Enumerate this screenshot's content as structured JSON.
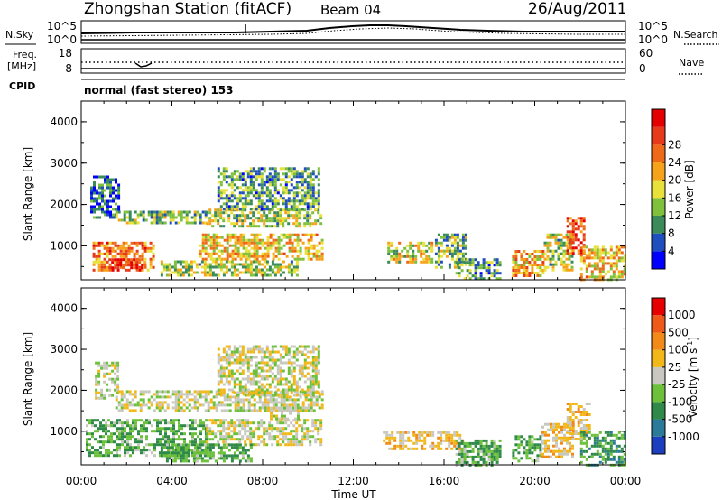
{
  "header": {
    "title": "Zhongshan Station (fitACF)",
    "beam": "Beam 04",
    "date": "26/Aug/2011"
  },
  "noise_panel": {
    "left_label": "N.Sky",
    "right_label": "N.Search",
    "ytick_top": "10^5",
    "ytick_bottom": "10^0"
  },
  "freq_panel": {
    "left_label_line1": "Freq.",
    "left_label_line2": "[MHz]",
    "right_label": "Nave",
    "left_tick_top": "18",
    "left_tick_bottom": "8",
    "right_tick_top": "60",
    "right_tick_bottom": "0"
  },
  "cpid": {
    "label": "CPID",
    "text": "normal (fast stereo) 153"
  },
  "axes": {
    "xlabel": "Time UT",
    "xticks": [
      "00:00",
      "04:00",
      "08:00",
      "12:00",
      "16:00",
      "20:00",
      "00:00"
    ],
    "ylabel": "Slant Range [km]",
    "yticks": [
      "1000",
      "2000",
      "3000",
      "4000"
    ]
  },
  "colorbars": {
    "power": {
      "label": "Power [dB]",
      "ticks": [
        "4",
        "8",
        "12",
        "16",
        "20",
        "24",
        "28"
      ],
      "colors": [
        "#0000ff",
        "#1f4fbf",
        "#3a8a5a",
        "#7fc03c",
        "#e8e13a",
        "#f7a21b",
        "#ef6a18",
        "#e63a1a",
        "#e50000"
      ]
    },
    "velocity": {
      "label": "Velocity [m s",
      "label_sup": "-1",
      "label_end": "]",
      "ticks": [
        "1000",
        "500",
        "100",
        "25",
        "-25",
        "-100",
        "-500",
        "-1000"
      ],
      "colors": [
        "#1b3fbf",
        "#2a7a9a",
        "#2f8a4a",
        "#6cc03a",
        "#c8c8c0",
        "#f2b81a",
        "#f28a1a",
        "#ef5a1a",
        "#e60000"
      ]
    }
  },
  "chart_data": [
    {
      "type": "heatmap",
      "title": "Power",
      "xlabel": "Time UT",
      "ylabel": "Slant Range [km]",
      "xlim": [
        0,
        24
      ],
      "ylim": [
        180,
        4500
      ],
      "colorbar": "Power [dB]",
      "clim": [
        0,
        32
      ],
      "grid": false,
      "regions": [
        {
          "t": [
            0.5,
            3.2
          ],
          "r": [
            400,
            1100
          ],
          "v": 22
        },
        {
          "t": [
            1.2,
            2.8
          ],
          "r": [
            450,
            700
          ],
          "v": 28
        },
        {
          "t": [
            0.4,
            1.6
          ],
          "r": [
            1700,
            2700
          ],
          "v": 6
        },
        {
          "t": [
            1.5,
            5.5
          ],
          "r": [
            1550,
            1850
          ],
          "v": 12
        },
        {
          "t": [
            5.5,
            10.6
          ],
          "r": [
            1450,
            1900
          ],
          "v": 14
        },
        {
          "t": [
            6.0,
            10.5
          ],
          "r": [
            1900,
            2900
          ],
          "v": 10
        },
        {
          "t": [
            5.2,
            10.6
          ],
          "r": [
            700,
            1300
          ],
          "v": 18
        },
        {
          "t": [
            3.5,
            9.5
          ],
          "r": [
            300,
            650
          ],
          "v": 14
        },
        {
          "t": [
            13.5,
            15.5
          ],
          "r": [
            600,
            1100
          ],
          "v": 16
        },
        {
          "t": [
            15.6,
            17.0
          ],
          "r": [
            500,
            1300
          ],
          "v": 12
        },
        {
          "t": [
            16.5,
            18.5
          ],
          "r": [
            200,
            700
          ],
          "v": 10
        },
        {
          "t": [
            19.0,
            20.4
          ],
          "r": [
            300,
            900
          ],
          "v": 20
        },
        {
          "t": [
            20.4,
            21.6
          ],
          "r": [
            400,
            1300
          ],
          "v": 14
        },
        {
          "t": [
            21.4,
            22.2
          ],
          "r": [
            800,
            1700
          ],
          "v": 26
        },
        {
          "t": [
            22.0,
            24.0
          ],
          "r": [
            200,
            1000
          ],
          "v": 18
        }
      ]
    },
    {
      "type": "heatmap",
      "title": "Velocity",
      "xlabel": "Time UT",
      "ylabel": "Slant Range [km]",
      "xlim": [
        0,
        24
      ],
      "ylim": [
        180,
        4500
      ],
      "colorbar": "Velocity [m s-1]",
      "clim": [
        -1000,
        1000
      ],
      "grid": false,
      "regions": [
        {
          "t": [
            0.2,
            5.5
          ],
          "r": [
            400,
            1300
          ],
          "v": -300
        },
        {
          "t": [
            0.6,
            1.6
          ],
          "r": [
            1800,
            2700
          ],
          "v": 0
        },
        {
          "t": [
            1.5,
            10.6
          ],
          "r": [
            1500,
            2000
          ],
          "v": 0
        },
        {
          "t": [
            6.0,
            10.5
          ],
          "r": [
            1900,
            3100
          ],
          "v": 0
        },
        {
          "t": [
            5.5,
            10.6
          ],
          "r": [
            700,
            1300
          ],
          "v": 0
        },
        {
          "t": [
            8.2,
            9.6
          ],
          "r": [
            1300,
            1600
          ],
          "v": 0
        },
        {
          "t": [
            3.5,
            7.5
          ],
          "r": [
            300,
            700
          ],
          "v": -300
        },
        {
          "t": [
            13.3,
            16.8
          ],
          "r": [
            600,
            1000
          ],
          "v": 200
        },
        {
          "t": [
            16.5,
            18.5
          ],
          "r": [
            200,
            800
          ],
          "v": -300
        },
        {
          "t": [
            19.0,
            20.3
          ],
          "r": [
            300,
            900
          ],
          "v": -300
        },
        {
          "t": [
            20.3,
            21.7
          ],
          "r": [
            400,
            1200
          ],
          "v": 200
        },
        {
          "t": [
            21.4,
            22.4
          ],
          "r": [
            800,
            1700
          ],
          "v": 200
        },
        {
          "t": [
            22.0,
            24.0
          ],
          "r": [
            200,
            1000
          ],
          "v": -400
        }
      ]
    }
  ]
}
